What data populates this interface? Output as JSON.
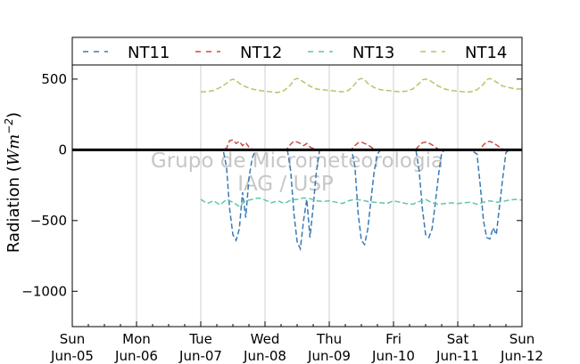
{
  "chart_data": {
    "type": "line",
    "ylabel_text": "Radiation (",
    "ylabel_math": "Wm",
    "ylabel_exp": "−2",
    "ylabel_close": ")",
    "ylim": [
      -1250,
      600
    ],
    "yticks": [
      500,
      0,
      -500,
      -1000
    ],
    "ytick_labels": [
      "500",
      "0",
      "−500",
      "−1000"
    ],
    "xlim": [
      0,
      7
    ],
    "xticks": [
      {
        "day": "Sun",
        "date": "Jun-05"
      },
      {
        "day": "Mon",
        "date": "Jun-06"
      },
      {
        "day": "Tue",
        "date": "Jun-07"
      },
      {
        "day": "Wed",
        "date": "Jun-08"
      },
      {
        "day": "Thu",
        "date": "Jun-09"
      },
      {
        "day": "Fri",
        "date": "Jun-10"
      },
      {
        "day": "Sat",
        "date": "Jun-11"
      },
      {
        "day": "Sun",
        "date": "Jun-12"
      }
    ],
    "grid": "vertical",
    "zero_line": true,
    "legend_position": "top",
    "watermark": [
      "Grupo de Micrometeorologia",
      "IAG / USP"
    ],
    "series": [
      {
        "name": "NT11",
        "color": "#3a7ab5",
        "x": [
          2.0,
          2.2,
          2.35,
          2.4,
          2.45,
          2.5,
          2.55,
          2.6,
          2.65,
          2.7,
          2.75,
          2.8,
          2.85,
          3.0,
          3.2,
          3.35,
          3.4,
          3.45,
          3.5,
          3.55,
          3.6,
          3.65,
          3.7,
          3.75,
          3.8,
          3.85,
          4.0,
          4.2,
          4.35,
          4.4,
          4.45,
          4.5,
          4.55,
          4.6,
          4.65,
          4.7,
          4.75,
          4.8,
          4.85,
          5.0,
          5.2,
          5.35,
          5.4,
          5.45,
          5.5,
          5.55,
          5.6,
          5.65,
          5.7,
          5.75,
          5.8,
          5.85,
          6.0,
          6.2,
          6.3,
          6.35,
          6.4,
          6.45,
          6.5,
          6.55,
          6.6,
          6.65,
          6.7,
          6.75,
          6.8,
          6.85,
          7.0
        ],
        "y": [
          0,
          0,
          -5,
          -120,
          -420,
          -600,
          -640,
          -560,
          -300,
          -480,
          -200,
          -60,
          0,
          0,
          0,
          -5,
          -150,
          -450,
          -650,
          -700,
          -500,
          -350,
          -620,
          -400,
          -150,
          0,
          0,
          0,
          -5,
          -120,
          -450,
          -640,
          -670,
          -560,
          -350,
          -150,
          -30,
          0,
          0,
          0,
          0,
          -5,
          -150,
          -420,
          -600,
          -620,
          -560,
          -380,
          -180,
          -20,
          0,
          0,
          0,
          0,
          -30,
          -250,
          -500,
          -620,
          -630,
          -550,
          -600,
          -400,
          -200,
          -20,
          0,
          0,
          0
        ]
      },
      {
        "name": "NT12",
        "color": "#cc4a4a",
        "x": [
          2.0,
          2.3,
          2.4,
          2.45,
          2.5,
          2.55,
          2.6,
          2.65,
          2.7,
          2.75,
          2.8,
          2.9,
          3.3,
          3.35,
          3.4,
          3.45,
          3.5,
          3.55,
          3.6,
          3.65,
          3.7,
          3.8,
          4.3,
          4.35,
          4.4,
          4.45,
          4.5,
          4.55,
          4.6,
          4.65,
          4.7,
          4.8,
          5.3,
          5.35,
          5.4,
          5.45,
          5.5,
          5.55,
          5.6,
          5.65,
          5.7,
          5.8,
          6.3,
          6.35,
          6.4,
          6.45,
          6.5,
          6.55,
          6.6,
          6.65,
          6.7,
          6.8,
          7.0
        ],
        "y": [
          0,
          0,
          10,
          65,
          70,
          45,
          60,
          30,
          50,
          20,
          5,
          0,
          0,
          10,
          40,
          60,
          55,
          45,
          30,
          45,
          20,
          0,
          0,
          5,
          30,
          50,
          55,
          45,
          35,
          20,
          5,
          0,
          0,
          5,
          30,
          50,
          55,
          48,
          35,
          20,
          5,
          0,
          0,
          5,
          35,
          55,
          60,
          50,
          35,
          20,
          5,
          0,
          0
        ]
      },
      {
        "name": "NT13",
        "color": "#5cc9a7",
        "x": [
          2.0,
          2.1,
          2.2,
          2.3,
          2.4,
          2.5,
          2.6,
          2.7,
          2.8,
          2.9,
          3.0,
          3.1,
          3.2,
          3.3,
          3.4,
          3.5,
          3.6,
          3.7,
          3.8,
          3.9,
          4.0,
          4.1,
          4.2,
          4.3,
          4.4,
          4.5,
          4.6,
          4.7,
          4.8,
          4.9,
          5.0,
          5.1,
          5.2,
          5.3,
          5.4,
          5.5,
          5.6,
          5.7,
          5.8,
          5.9,
          6.0,
          6.1,
          6.2,
          6.3,
          6.4,
          6.5,
          6.6,
          6.7,
          6.8,
          6.9,
          7.0
        ],
        "y": [
          -350,
          -380,
          -360,
          -390,
          -350,
          -370,
          -400,
          -360,
          -350,
          -340,
          -355,
          -375,
          -360,
          -380,
          -355,
          -350,
          -340,
          -345,
          -360,
          -365,
          -360,
          -370,
          -380,
          -360,
          -350,
          -355,
          -365,
          -370,
          -375,
          -380,
          -360,
          -370,
          -380,
          -385,
          -365,
          -350,
          -375,
          -385,
          -380,
          -375,
          -380,
          -375,
          -370,
          -385,
          -370,
          -360,
          -370,
          -365,
          -355,
          -350,
          -355
        ]
      },
      {
        "name": "NT14",
        "color": "#b8c466",
        "x": [
          2.0,
          2.1,
          2.2,
          2.3,
          2.4,
          2.45,
          2.5,
          2.55,
          2.6,
          2.7,
          2.8,
          2.9,
          3.0,
          3.1,
          3.2,
          3.3,
          3.4,
          3.45,
          3.5,
          3.55,
          3.6,
          3.7,
          3.8,
          3.9,
          4.0,
          4.1,
          4.2,
          4.3,
          4.4,
          4.45,
          4.5,
          4.55,
          4.6,
          4.7,
          4.8,
          4.9,
          5.0,
          5.1,
          5.2,
          5.3,
          5.4,
          5.45,
          5.5,
          5.55,
          5.6,
          5.7,
          5.8,
          5.9,
          6.0,
          6.1,
          6.2,
          6.3,
          6.4,
          6.45,
          6.5,
          6.55,
          6.6,
          6.7,
          6.8,
          6.9,
          7.0
        ],
        "y": [
          410,
          412,
          420,
          440,
          470,
          490,
          500,
          490,
          470,
          445,
          430,
          420,
          415,
          410,
          405,
          420,
          460,
          495,
          505,
          495,
          480,
          450,
          430,
          425,
          420,
          415,
          410,
          420,
          465,
          495,
          505,
          495,
          470,
          440,
          425,
          420,
          415,
          410,
          415,
          430,
          470,
          495,
          500,
          495,
          480,
          450,
          430,
          420,
          415,
          410,
          410,
          425,
          465,
          495,
          505,
          495,
          480,
          450,
          440,
          430,
          430
        ]
      }
    ]
  }
}
